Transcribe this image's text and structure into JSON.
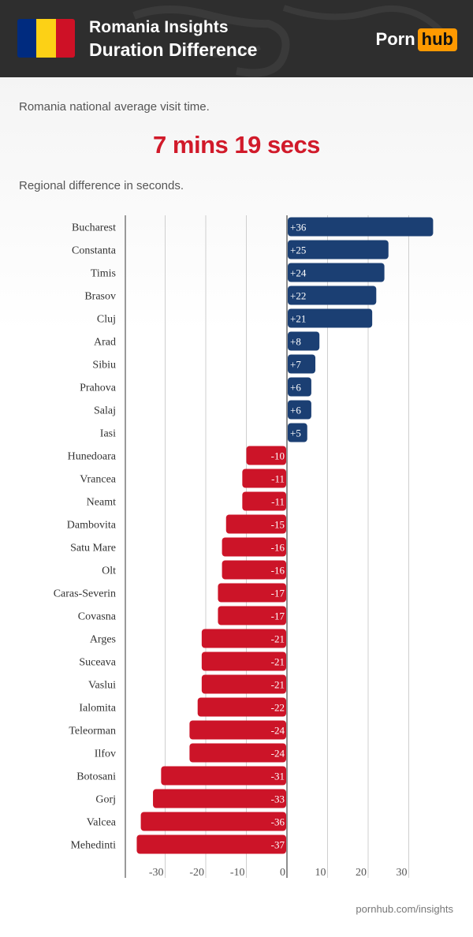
{
  "header": {
    "title": "Romania Insights",
    "subtitle": "Duration Difference",
    "flag_colors": [
      "#002b7f",
      "#fcd116",
      "#ce1126"
    ],
    "logo": {
      "part1": "Porn",
      "part2": "hub"
    }
  },
  "intro": {
    "avg_label": "Romania national average visit time.",
    "avg_value": "7 mins 19 secs",
    "diff_label": "Regional difference in seconds."
  },
  "chart_data": {
    "type": "bar",
    "orientation": "horizontal",
    "categories": [
      "Bucharest",
      "Constanta",
      "Timis",
      "Brasov",
      "Cluj",
      "Arad",
      "Sibiu",
      "Prahova",
      "Salaj",
      "Iasi",
      "Hunedoara",
      "Vrancea",
      "Neamt",
      "Dambovita",
      "Satu Mare",
      "Olt",
      "Caras-Severin",
      "Covasna",
      "Arges",
      "Suceava",
      "Vaslui",
      "Ialomita",
      "Teleorman",
      "Ilfov",
      "Botosani",
      "Gorj",
      "Valcea",
      "Mehedinti"
    ],
    "values": [
      36,
      25,
      24,
      22,
      21,
      8,
      7,
      6,
      6,
      5,
      -10,
      -11,
      -11,
      -15,
      -16,
      -16,
      -17,
      -17,
      -21,
      -21,
      -21,
      -22,
      -24,
      -24,
      -31,
      -33,
      -36,
      -37
    ],
    "labels": [
      "+36",
      "+25",
      "+24",
      "+22",
      "+21",
      "+8",
      "+7",
      "+6",
      "+6",
      "+5",
      "-10",
      "-11",
      "-11",
      "-15",
      "-16",
      "-16",
      "-17",
      "-17",
      "-21",
      "-21",
      "-21",
      "-22",
      "-24",
      "-24",
      "-31",
      "-33",
      "-36",
      "-37"
    ],
    "xticks": [
      -30,
      -20,
      -10,
      0,
      10,
      20,
      30
    ],
    "xlim": [
      -40,
      40
    ],
    "colors": {
      "positive": "#1b3f73",
      "negative": "#cc1428"
    }
  },
  "footer": {
    "source": "pornhub.com/insights"
  }
}
